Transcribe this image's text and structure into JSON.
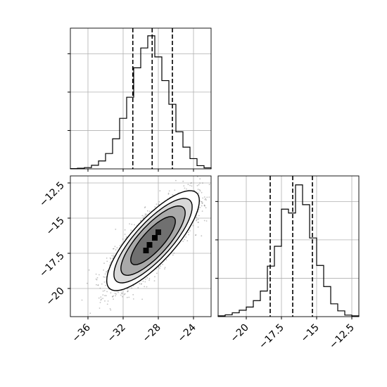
{
  "chart_data": {
    "type": "corner-plot",
    "grid": true,
    "parameters": [
      {
        "range": [
          -38,
          -22
        ],
        "ticks": [
          -36,
          -32,
          -28,
          -24
        ]
      },
      {
        "range": [
          -22,
          -12
        ],
        "ticks": [
          -20.0,
          -17.5,
          -15.0,
          -12.5
        ]
      }
    ],
    "histograms": [
      {
        "parameter": 0,
        "bins": [
          {
            "x0": -38.0,
            "x1": -37.2,
            "count": 2
          },
          {
            "x0": -37.2,
            "x1": -36.4,
            "count": 5
          },
          {
            "x0": -36.4,
            "x1": -35.6,
            "count": 10
          },
          {
            "x0": -35.6,
            "x1": -34.8,
            "count": 28
          },
          {
            "x0": -34.8,
            "x1": -34.0,
            "count": 62
          },
          {
            "x0": -34.0,
            "x1": -33.2,
            "count": 120
          },
          {
            "x0": -33.2,
            "x1": -32.4,
            "count": 235
          },
          {
            "x0": -32.4,
            "x1": -31.6,
            "count": 395
          },
          {
            "x0": -31.6,
            "x1": -30.8,
            "count": 560
          },
          {
            "x0": -30.8,
            "x1": -30.0,
            "count": 790
          },
          {
            "x0": -30.0,
            "x1": -29.2,
            "count": 945
          },
          {
            "x0": -29.2,
            "x1": -28.4,
            "count": 1040
          },
          {
            "x0": -28.4,
            "x1": -27.6,
            "count": 875
          },
          {
            "x0": -27.6,
            "x1": -26.8,
            "count": 690
          },
          {
            "x0": -26.8,
            "x1": -26.0,
            "count": 505
          },
          {
            "x0": -26.0,
            "x1": -25.2,
            "count": 290
          },
          {
            "x0": -25.2,
            "x1": -24.4,
            "count": 170
          },
          {
            "x0": -24.4,
            "x1": -23.6,
            "count": 80
          },
          {
            "x0": -23.6,
            "x1": -22.8,
            "count": 25
          },
          {
            "x0": -22.8,
            "x1": -22.0,
            "count": 8
          }
        ],
        "ylim": [
          0,
          1100
        ],
        "yticks": [
          300,
          600,
          900
        ],
        "quantiles": [
          -30.9,
          -28.7,
          -26.4
        ]
      },
      {
        "parameter": 1,
        "bins": [
          {
            "x0": -22.0,
            "x1": -21.5,
            "count": 6
          },
          {
            "x0": -21.5,
            "x1": -21.0,
            "count": 14
          },
          {
            "x0": -21.0,
            "x1": -20.5,
            "count": 30
          },
          {
            "x0": -20.5,
            "x1": -20.0,
            "count": 50
          },
          {
            "x0": -20.0,
            "x1": -19.5,
            "count": 75
          },
          {
            "x0": -19.5,
            "x1": -19.0,
            "count": 125
          },
          {
            "x0": -19.0,
            "x1": -18.5,
            "count": 200
          },
          {
            "x0": -18.5,
            "x1": -18.0,
            "count": 395
          },
          {
            "x0": -18.0,
            "x1": -17.5,
            "count": 550
          },
          {
            "x0": -17.5,
            "x1": -17.0,
            "count": 840
          },
          {
            "x0": -17.0,
            "x1": -16.5,
            "count": 810
          },
          {
            "x0": -16.5,
            "x1": -16.0,
            "count": 1030
          },
          {
            "x0": -16.0,
            "x1": -15.5,
            "count": 875
          },
          {
            "x0": -15.5,
            "x1": -15.0,
            "count": 615
          },
          {
            "x0": -15.0,
            "x1": -14.5,
            "count": 400
          },
          {
            "x0": -14.5,
            "x1": -14.0,
            "count": 235
          },
          {
            "x0": -14.0,
            "x1": -13.5,
            "count": 100
          },
          {
            "x0": -13.5,
            "x1": -13.0,
            "count": 45
          },
          {
            "x0": -13.0,
            "x1": -12.5,
            "count": 12
          },
          {
            "x0": -12.5,
            "x1": -12.0,
            "count": 6
          }
        ],
        "ylim": [
          0,
          1100
        ],
        "yticks": [
          300,
          600,
          900
        ],
        "quantiles": [
          -18.3,
          -16.7,
          -15.3
        ]
      }
    ],
    "scatter_2d": {
      "x_parameter": 0,
      "y_parameter": 1,
      "mean": [
        -28.6,
        -16.6
      ],
      "std": [
        2.15,
        1.45
      ],
      "correlation": 0.8,
      "samples": 5000,
      "contours": [
        {
          "level": 0.5,
          "radius": 1.18
        },
        {
          "level": 1.0,
          "radius": 1.7
        },
        {
          "level": 1.5,
          "radius": 2.07
        },
        {
          "level": 2.0,
          "radius": 2.45
        }
      ],
      "density_cells": [
        {
          "x": -28.4,
          "y": -16.4,
          "intensity": 1.0
        },
        {
          "x": -29.0,
          "y": -16.9,
          "intensity": 0.95
        },
        {
          "x": -28.0,
          "y": -16.0,
          "intensity": 0.8
        },
        {
          "x": -29.4,
          "y": -17.3,
          "intensity": 0.9
        }
      ]
    }
  },
  "colors": {
    "line": "#000000",
    "grid": "#b0b0b0",
    "point": "#7a7a7a",
    "axis": "#000000"
  }
}
